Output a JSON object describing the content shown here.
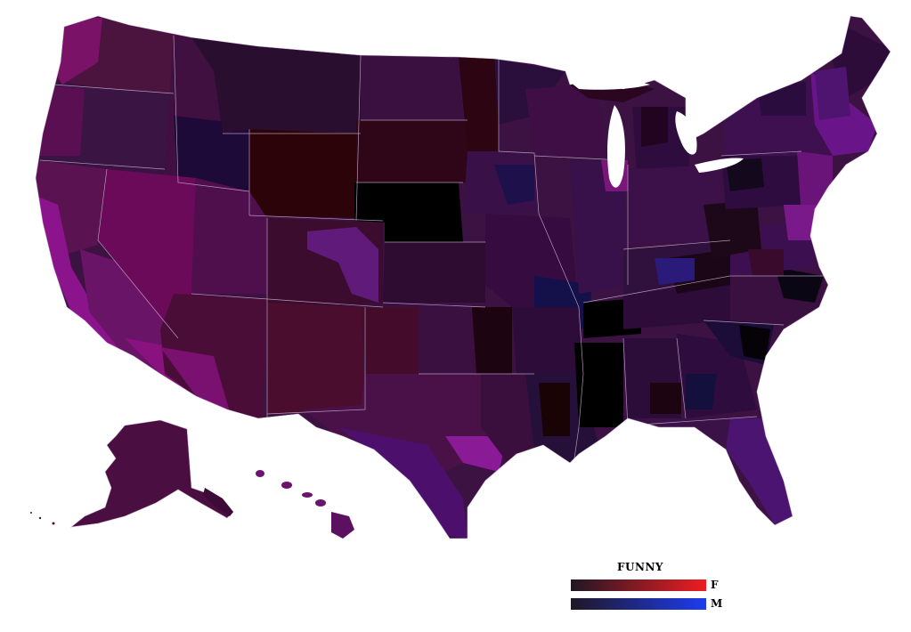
{
  "legend": {
    "title": "FUNNY",
    "scales": [
      {
        "label": "F",
        "from": "#1f1724",
        "to": "#ee1d22"
      },
      {
        "label": "M",
        "from": "#1f1724",
        "to": "#1d3cf0"
      }
    ]
  },
  "colors": {
    "background": "#ffffff",
    "base_purple": "#3a1240",
    "state_border": "#b8a0c0",
    "darkest": "#000000",
    "bright_magenta": "#8a128a"
  }
}
